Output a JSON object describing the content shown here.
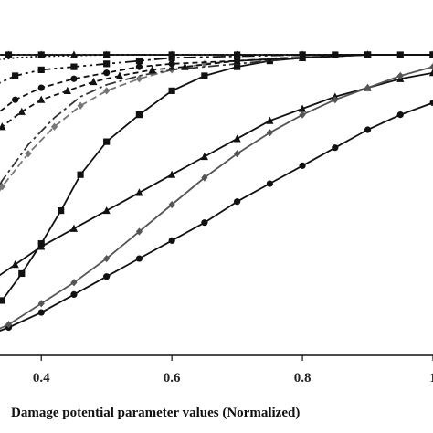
{
  "chart_data": {
    "type": "line",
    "title": "",
    "xlabel": "Damage potential parameter values (Normalized)",
    "ylabel": "",
    "xlim": [
      0.18,
      1.0
    ],
    "ylim": [
      0,
      1
    ],
    "x_ticks": [
      {
        "value": 0.4,
        "label": "0.4"
      },
      {
        "value": 0.6,
        "label": "0.6"
      },
      {
        "value": 0.8,
        "label": "0.8"
      },
      {
        "value": 1.0,
        "label": "1"
      }
    ],
    "grid": false,
    "series": [
      {
        "color": "#111111",
        "dash": "none",
        "marker": "circle",
        "x": [
          0.18,
          0.25,
          0.3,
          0.35,
          0.4,
          0.45,
          0.5,
          0.55,
          0.6,
          0.65,
          0.7,
          0.75,
          0.8,
          0.85,
          0.9,
          0.95,
          1.0
        ],
        "y": [
          0.0,
          0.02,
          0.05,
          0.09,
          0.14,
          0.2,
          0.26,
          0.32,
          0.38,
          0.44,
          0.51,
          0.57,
          0.63,
          0.69,
          0.75,
          0.8,
          0.84
        ]
      },
      {
        "color": "#111111",
        "dash": "none",
        "marker": "triangle",
        "x": [
          0.18,
          0.24,
          0.28,
          0.32,
          0.36,
          0.4,
          0.45,
          0.5,
          0.55,
          0.6,
          0.65,
          0.7,
          0.75,
          0.8,
          0.85,
          0.9,
          0.95,
          1.0
        ],
        "y": [
          0.03,
          0.1,
          0.17,
          0.24,
          0.3,
          0.36,
          0.42,
          0.48,
          0.54,
          0.6,
          0.66,
          0.72,
          0.78,
          0.82,
          0.86,
          0.89,
          0.92,
          0.94
        ]
      },
      {
        "color": "#555555",
        "dash": "none",
        "marker": "diamond",
        "x": [
          0.18,
          0.25,
          0.3,
          0.35,
          0.4,
          0.45,
          0.5,
          0.55,
          0.6,
          0.65,
          0.7,
          0.75,
          0.8,
          0.85,
          0.9,
          0.95,
          1.0
        ],
        "y": [
          0.0,
          0.02,
          0.05,
          0.1,
          0.17,
          0.24,
          0.32,
          0.41,
          0.5,
          0.59,
          0.67,
          0.74,
          0.8,
          0.85,
          0.89,
          0.93,
          0.96
        ]
      },
      {
        "color": "#111111",
        "dash": "none",
        "marker": "square",
        "x": [
          0.18,
          0.25,
          0.3,
          0.34,
          0.37,
          0.4,
          0.43,
          0.46,
          0.5,
          0.55,
          0.6,
          0.65,
          0.7,
          0.75,
          0.8,
          0.85,
          0.9,
          0.95,
          1.0
        ],
        "y": [
          0.0,
          0.04,
          0.1,
          0.18,
          0.27,
          0.37,
          0.48,
          0.6,
          0.71,
          0.8,
          0.88,
          0.93,
          0.96,
          0.98,
          0.99,
          1.0,
          1.0,
          1.0,
          1.0
        ]
      },
      {
        "color": "#777777",
        "dash": "8 4",
        "marker": "diamond",
        "x": [
          0.18,
          0.22,
          0.26,
          0.3,
          0.34,
          0.38,
          0.42,
          0.46,
          0.5,
          0.55,
          0.6,
          0.65,
          0.7,
          0.8,
          0.9,
          1.0
        ],
        "y": [
          0.06,
          0.16,
          0.28,
          0.42,
          0.56,
          0.67,
          0.76,
          0.83,
          0.88,
          0.92,
          0.95,
          0.97,
          0.98,
          0.995,
          1.0,
          1.0
        ]
      },
      {
        "color": "#333333",
        "dash": "12 4 3 4",
        "marker": "none",
        "x": [
          0.18,
          0.22,
          0.26,
          0.3,
          0.34,
          0.38,
          0.42,
          0.46,
          0.5,
          0.55,
          0.6,
          0.7,
          0.8,
          0.9,
          1.0
        ],
        "y": [
          0.04,
          0.14,
          0.26,
          0.42,
          0.58,
          0.7,
          0.79,
          0.86,
          0.9,
          0.93,
          0.95,
          0.97,
          0.99,
          1.0,
          1.0
        ]
      },
      {
        "color": "#111111",
        "dash": "6 4",
        "marker": "triangle",
        "x": [
          0.18,
          0.22,
          0.25,
          0.28,
          0.31,
          0.34,
          0.37,
          0.4,
          0.44,
          0.48,
          0.52,
          0.57,
          0.62,
          0.7,
          0.8,
          0.9,
          1.0
        ],
        "y": [
          0.18,
          0.35,
          0.49,
          0.6,
          0.69,
          0.76,
          0.81,
          0.85,
          0.88,
          0.91,
          0.93,
          0.95,
          0.96,
          0.98,
          0.99,
          1.0,
          1.0
        ]
      },
      {
        "color": "#111111",
        "dash": "6 4",
        "marker": "circle",
        "x": [
          0.18,
          0.21,
          0.24,
          0.27,
          0.3,
          0.33,
          0.36,
          0.4,
          0.45,
          0.5,
          0.55,
          0.6,
          0.7,
          0.8,
          0.9,
          1.0
        ],
        "y": [
          0.28,
          0.43,
          0.56,
          0.66,
          0.74,
          0.8,
          0.85,
          0.89,
          0.92,
          0.94,
          0.96,
          0.97,
          0.98,
          0.99,
          1.0,
          1.0
        ]
      },
      {
        "color": "#111111",
        "dash": "14 4 3 4 3 4",
        "marker": "square",
        "x": [
          0.18,
          0.21,
          0.24,
          0.27,
          0.3,
          0.33,
          0.36,
          0.4,
          0.45,
          0.5,
          0.55,
          0.6,
          0.7,
          0.8,
          0.9,
          1.0
        ],
        "y": [
          0.38,
          0.56,
          0.7,
          0.8,
          0.86,
          0.9,
          0.93,
          0.95,
          0.96,
          0.97,
          0.98,
          0.99,
          0.995,
          1.0,
          1.0,
          1.0
        ]
      },
      {
        "color": "#111111",
        "dash": "2 3",
        "marker": "none",
        "x": [
          0.18,
          0.2,
          0.22,
          0.25,
          0.28,
          0.32,
          0.36,
          0.4,
          0.5,
          0.6,
          0.8,
          1.0
        ],
        "y": [
          0.86,
          0.89,
          0.92,
          0.95,
          0.97,
          0.98,
          0.99,
          0.995,
          1.0,
          1.0,
          1.0,
          1.0
        ]
      },
      {
        "color": "#111111",
        "dash": "3 3",
        "marker": "triangle",
        "x": [
          0.18,
          0.2,
          0.22,
          0.25,
          0.28,
          0.31,
          0.35,
          0.4,
          0.45,
          0.5,
          0.6,
          0.7,
          0.8,
          0.9,
          1.0
        ],
        "y": [
          0.96,
          0.97,
          0.98,
          0.99,
          0.995,
          1.0,
          1.0,
          1.0,
          1.0,
          1.0,
          1.0,
          1.0,
          1.0,
          1.0,
          1.0
        ]
      },
      {
        "color": "#111111",
        "dash": "none",
        "marker": "square",
        "x": [
          0.25,
          0.3,
          0.35,
          0.4,
          0.5,
          0.6,
          0.7,
          0.8,
          0.9,
          1.0
        ],
        "y": [
          0.99,
          1.0,
          1.0,
          1.0,
          1.0,
          1.0,
          1.0,
          1.0,
          1.0,
          1.0
        ]
      }
    ]
  }
}
